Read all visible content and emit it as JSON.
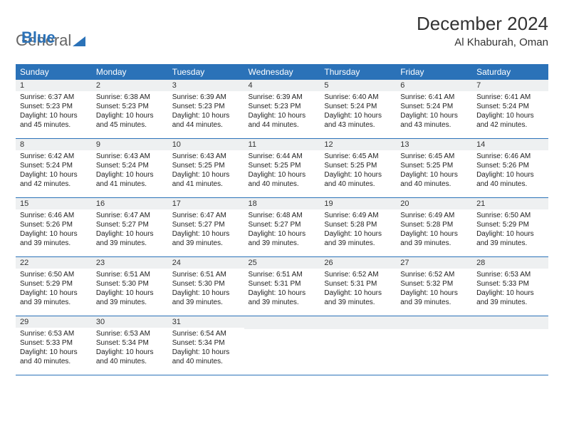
{
  "brand": {
    "part1": "General",
    "part2": "Blue"
  },
  "title": "December 2024",
  "location": "Al Khaburah, Oman",
  "colors": {
    "header_bg": "#2b72b8",
    "header_text": "#ffffff",
    "daynum_bg": "#eef0f1",
    "rule": "#2b72b8",
    "text": "#333333"
  },
  "weekdays": [
    "Sunday",
    "Monday",
    "Tuesday",
    "Wednesday",
    "Thursday",
    "Friday",
    "Saturday"
  ],
  "days": [
    {
      "n": "1",
      "sr": "Sunrise: 6:37 AM",
      "ss": "Sunset: 5:23 PM",
      "d1": "Daylight: 10 hours",
      "d2": "and 45 minutes."
    },
    {
      "n": "2",
      "sr": "Sunrise: 6:38 AM",
      "ss": "Sunset: 5:23 PM",
      "d1": "Daylight: 10 hours",
      "d2": "and 45 minutes."
    },
    {
      "n": "3",
      "sr": "Sunrise: 6:39 AM",
      "ss": "Sunset: 5:23 PM",
      "d1": "Daylight: 10 hours",
      "d2": "and 44 minutes."
    },
    {
      "n": "4",
      "sr": "Sunrise: 6:39 AM",
      "ss": "Sunset: 5:23 PM",
      "d1": "Daylight: 10 hours",
      "d2": "and 44 minutes."
    },
    {
      "n": "5",
      "sr": "Sunrise: 6:40 AM",
      "ss": "Sunset: 5:24 PM",
      "d1": "Daylight: 10 hours",
      "d2": "and 43 minutes."
    },
    {
      "n": "6",
      "sr": "Sunrise: 6:41 AM",
      "ss": "Sunset: 5:24 PM",
      "d1": "Daylight: 10 hours",
      "d2": "and 43 minutes."
    },
    {
      "n": "7",
      "sr": "Sunrise: 6:41 AM",
      "ss": "Sunset: 5:24 PM",
      "d1": "Daylight: 10 hours",
      "d2": "and 42 minutes."
    },
    {
      "n": "8",
      "sr": "Sunrise: 6:42 AM",
      "ss": "Sunset: 5:24 PM",
      "d1": "Daylight: 10 hours",
      "d2": "and 42 minutes."
    },
    {
      "n": "9",
      "sr": "Sunrise: 6:43 AM",
      "ss": "Sunset: 5:24 PM",
      "d1": "Daylight: 10 hours",
      "d2": "and 41 minutes."
    },
    {
      "n": "10",
      "sr": "Sunrise: 6:43 AM",
      "ss": "Sunset: 5:25 PM",
      "d1": "Daylight: 10 hours",
      "d2": "and 41 minutes."
    },
    {
      "n": "11",
      "sr": "Sunrise: 6:44 AM",
      "ss": "Sunset: 5:25 PM",
      "d1": "Daylight: 10 hours",
      "d2": "and 40 minutes."
    },
    {
      "n": "12",
      "sr": "Sunrise: 6:45 AM",
      "ss": "Sunset: 5:25 PM",
      "d1": "Daylight: 10 hours",
      "d2": "and 40 minutes."
    },
    {
      "n": "13",
      "sr": "Sunrise: 6:45 AM",
      "ss": "Sunset: 5:25 PM",
      "d1": "Daylight: 10 hours",
      "d2": "and 40 minutes."
    },
    {
      "n": "14",
      "sr": "Sunrise: 6:46 AM",
      "ss": "Sunset: 5:26 PM",
      "d1": "Daylight: 10 hours",
      "d2": "and 40 minutes."
    },
    {
      "n": "15",
      "sr": "Sunrise: 6:46 AM",
      "ss": "Sunset: 5:26 PM",
      "d1": "Daylight: 10 hours",
      "d2": "and 39 minutes."
    },
    {
      "n": "16",
      "sr": "Sunrise: 6:47 AM",
      "ss": "Sunset: 5:27 PM",
      "d1": "Daylight: 10 hours",
      "d2": "and 39 minutes."
    },
    {
      "n": "17",
      "sr": "Sunrise: 6:47 AM",
      "ss": "Sunset: 5:27 PM",
      "d1": "Daylight: 10 hours",
      "d2": "and 39 minutes."
    },
    {
      "n": "18",
      "sr": "Sunrise: 6:48 AM",
      "ss": "Sunset: 5:27 PM",
      "d1": "Daylight: 10 hours",
      "d2": "and 39 minutes."
    },
    {
      "n": "19",
      "sr": "Sunrise: 6:49 AM",
      "ss": "Sunset: 5:28 PM",
      "d1": "Daylight: 10 hours",
      "d2": "and 39 minutes."
    },
    {
      "n": "20",
      "sr": "Sunrise: 6:49 AM",
      "ss": "Sunset: 5:28 PM",
      "d1": "Daylight: 10 hours",
      "d2": "and 39 minutes."
    },
    {
      "n": "21",
      "sr": "Sunrise: 6:50 AM",
      "ss": "Sunset: 5:29 PM",
      "d1": "Daylight: 10 hours",
      "d2": "and 39 minutes."
    },
    {
      "n": "22",
      "sr": "Sunrise: 6:50 AM",
      "ss": "Sunset: 5:29 PM",
      "d1": "Daylight: 10 hours",
      "d2": "and 39 minutes."
    },
    {
      "n": "23",
      "sr": "Sunrise: 6:51 AM",
      "ss": "Sunset: 5:30 PM",
      "d1": "Daylight: 10 hours",
      "d2": "and 39 minutes."
    },
    {
      "n": "24",
      "sr": "Sunrise: 6:51 AM",
      "ss": "Sunset: 5:30 PM",
      "d1": "Daylight: 10 hours",
      "d2": "and 39 minutes."
    },
    {
      "n": "25",
      "sr": "Sunrise: 6:51 AM",
      "ss": "Sunset: 5:31 PM",
      "d1": "Daylight: 10 hours",
      "d2": "and 39 minutes."
    },
    {
      "n": "26",
      "sr": "Sunrise: 6:52 AM",
      "ss": "Sunset: 5:31 PM",
      "d1": "Daylight: 10 hours",
      "d2": "and 39 minutes."
    },
    {
      "n": "27",
      "sr": "Sunrise: 6:52 AM",
      "ss": "Sunset: 5:32 PM",
      "d1": "Daylight: 10 hours",
      "d2": "and 39 minutes."
    },
    {
      "n": "28",
      "sr": "Sunrise: 6:53 AM",
      "ss": "Sunset: 5:33 PM",
      "d1": "Daylight: 10 hours",
      "d2": "and 39 minutes."
    },
    {
      "n": "29",
      "sr": "Sunrise: 6:53 AM",
      "ss": "Sunset: 5:33 PM",
      "d1": "Daylight: 10 hours",
      "d2": "and 40 minutes."
    },
    {
      "n": "30",
      "sr": "Sunrise: 6:53 AM",
      "ss": "Sunset: 5:34 PM",
      "d1": "Daylight: 10 hours",
      "d2": "and 40 minutes."
    },
    {
      "n": "31",
      "sr": "Sunrise: 6:54 AM",
      "ss": "Sunset: 5:34 PM",
      "d1": "Daylight: 10 hours",
      "d2": "and 40 minutes."
    }
  ],
  "trailing_empty": 4
}
